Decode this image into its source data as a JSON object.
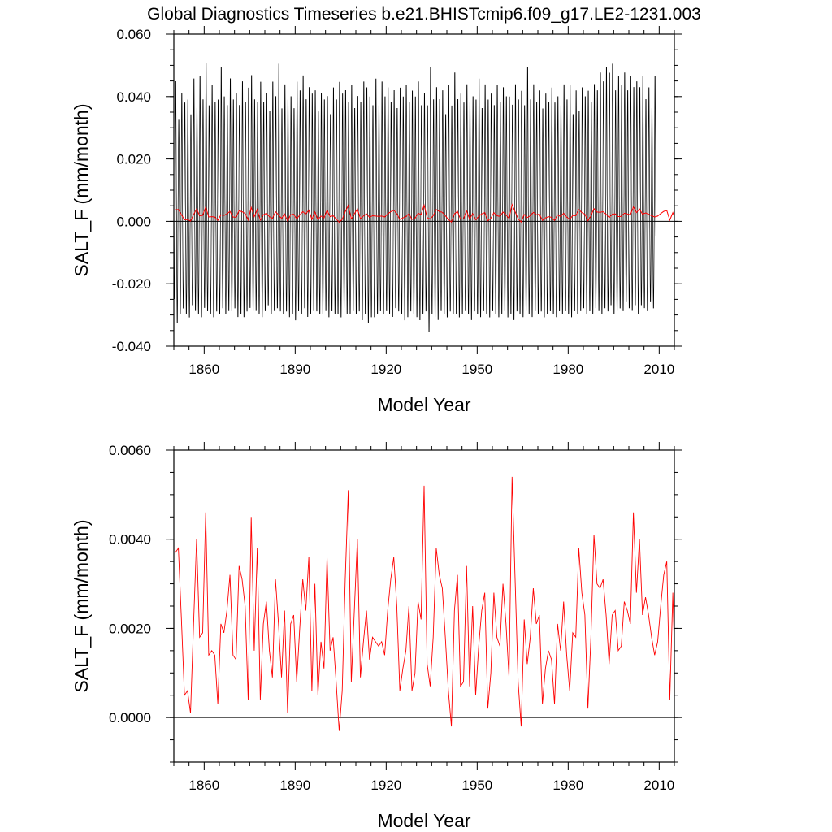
{
  "title": "Global Diagnostics Timeseries b.e21.BHISTcmip6.f09_g17.LE2-1231.003",
  "colors": {
    "monthly": "#000000",
    "annual": "#ff0000",
    "axes": "#000000"
  },
  "chart_data": [
    {
      "type": "line",
      "xlabel": "Model Year",
      "ylabel": "SALT_F (mm/month)",
      "xlim": [
        1850,
        2015
      ],
      "ylim": [
        -0.04,
        0.06
      ],
      "x_ticks": [
        "1860",
        "1890",
        "1920",
        "1950",
        "1980",
        "2010"
      ],
      "y_ticks": [
        "-0.040",
        "-0.020",
        "0.000",
        "0.020",
        "0.040",
        "0.060"
      ],
      "zero_line": true,
      "series": [
        {
          "description": "monthly values, x = 1850.0 + i/12 (i = 0..1979), 1980 points",
          "monthly_peak_max": [
            0.047,
            0.034,
            0.043,
            0.04,
            0.041,
            0.036,
            0.048,
            0.038,
            0.049,
            0.041,
            0.053,
            0.039,
            0.046,
            0.04,
            0.041,
            0.052,
            0.042,
            0.039,
            0.048,
            0.041,
            0.043,
            0.039,
            0.047,
            0.04,
            0.045,
            0.049,
            0.041,
            0.04,
            0.047,
            0.04,
            0.043,
            0.037,
            0.047,
            0.042,
            0.053,
            0.038,
            0.046,
            0.041,
            0.042,
            0.038,
            0.047,
            0.044,
            0.049,
            0.041,
            0.045,
            0.043,
            0.044,
            0.037,
            0.043,
            0.041,
            0.042,
            0.036,
            0.045,
            0.041,
            0.047,
            0.043,
            0.044,
            0.04,
            0.046,
            0.038,
            0.042,
            0.04,
            0.047,
            0.045,
            0.042,
            0.039,
            0.048,
            0.039,
            0.047,
            0.042,
            0.045,
            0.04,
            0.044,
            0.038,
            0.045,
            0.042,
            0.046,
            0.04,
            0.044,
            0.042,
            0.047,
            0.039,
            0.043,
            0.039,
            0.052,
            0.041,
            0.045,
            0.041,
            0.044,
            0.036,
            0.046,
            0.039,
            0.05,
            0.041,
            0.043,
            0.04,
            0.046,
            0.04,
            0.042,
            0.041,
            0.048,
            0.038,
            0.046,
            0.041,
            0.043,
            0.039,
            0.046,
            0.04,
            0.045,
            0.042,
            0.042,
            0.039,
            0.046,
            0.041,
            0.044,
            0.039,
            0.052,
            0.041,
            0.046,
            0.04,
            0.044,
            0.038,
            0.043,
            0.04,
            0.045,
            0.04,
            0.042,
            0.039,
            0.046,
            0.041,
            0.046,
            0.036,
            0.044,
            0.037,
            0.045,
            0.042,
            0.044,
            0.04,
            0.046,
            0.044,
            0.05,
            0.047,
            0.052,
            0.05,
            0.053,
            0.044,
            0.049,
            0.046,
            0.05,
            0.044,
            0.049,
            0.045,
            0.047,
            0.045,
            0.049,
            0.041,
            0.045,
            0.038,
            0.049
          ],
          "monthly_trough_min": [
            -0.026,
            -0.034,
            -0.031,
            -0.029,
            -0.031,
            -0.032,
            -0.028,
            -0.03,
            -0.031,
            -0.032,
            -0.029,
            -0.03,
            -0.031,
            -0.032,
            -0.03,
            -0.031,
            -0.029,
            -0.031,
            -0.03,
            -0.03,
            -0.029,
            -0.032,
            -0.031,
            -0.032,
            -0.03,
            -0.029,
            -0.03,
            -0.03,
            -0.031,
            -0.032,
            -0.03,
            -0.028,
            -0.031,
            -0.03,
            -0.029,
            -0.03,
            -0.031,
            -0.03,
            -0.032,
            -0.031,
            -0.033,
            -0.03,
            -0.031,
            -0.029,
            -0.032,
            -0.031,
            -0.03,
            -0.03,
            -0.031,
            -0.031,
            -0.03,
            -0.032,
            -0.03,
            -0.031,
            -0.031,
            -0.032,
            -0.029,
            -0.031,
            -0.031,
            -0.03,
            -0.031,
            -0.03,
            -0.033,
            -0.031,
            -0.034,
            -0.032,
            -0.032,
            -0.031,
            -0.03,
            -0.031,
            -0.03,
            -0.031,
            -0.032,
            -0.029,
            -0.03,
            -0.031,
            -0.033,
            -0.032,
            -0.03,
            -0.031,
            -0.032,
            -0.033,
            -0.031,
            -0.03,
            -0.037,
            -0.031,
            -0.032,
            -0.033,
            -0.03,
            -0.031,
            -0.032,
            -0.03,
            -0.031,
            -0.031,
            -0.032,
            -0.031,
            -0.03,
            -0.031,
            -0.033,
            -0.03,
            -0.031,
            -0.032,
            -0.03,
            -0.031,
            -0.032,
            -0.03,
            -0.031,
            -0.032,
            -0.031,
            -0.03,
            -0.032,
            -0.031,
            -0.033,
            -0.03,
            -0.031,
            -0.032,
            -0.03,
            -0.031,
            -0.032,
            -0.03,
            -0.031,
            -0.03,
            -0.032,
            -0.031,
            -0.03,
            -0.031,
            -0.032,
            -0.03,
            -0.031,
            -0.03,
            -0.031,
            -0.032,
            -0.03,
            -0.031,
            -0.03,
            -0.029,
            -0.031,
            -0.03,
            -0.031,
            -0.029,
            -0.03,
            -0.031,
            -0.029,
            -0.03,
            -0.028,
            -0.031,
            -0.03,
            -0.029,
            -0.03,
            -0.027,
            -0.029,
            -0.03,
            -0.028,
            -0.031,
            -0.028,
            -0.029,
            -0.03,
            -0.027,
            -0.029,
            -0.026,
            -0.028,
            -0.03,
            -0.027
          ],
          "color": "#000000"
        },
        {
          "description": "annual means (red) — same as lower panel",
          "color": "#ff0000"
        }
      ]
    },
    {
      "type": "line",
      "xlabel": "Model Year",
      "ylabel": "SALT_F (mm/month)",
      "xlim": [
        1850,
        2015
      ],
      "ylim": [
        -0.001,
        0.006
      ],
      "x_ticks": [
        "1860",
        "1890",
        "1920",
        "1950",
        "1980",
        "2010"
      ],
      "y_ticks": [
        "0.0000",
        "0.0020",
        "0.0040",
        "0.0060"
      ],
      "zero_line": true,
      "series": [
        {
          "x_start": 1850,
          "x_step": 1,
          "values": [
            0.0037,
            0.0038,
            0.0022,
            0.0005,
            0.0006,
            0.0001,
            0.0021,
            0.004,
            0.0018,
            0.0019,
            0.0046,
            0.0014,
            0.0015,
            0.0014,
            0.0003,
            0.0021,
            0.0019,
            0.0024,
            0.0032,
            0.0014,
            0.0013,
            0.0034,
            0.0031,
            0.0025,
            0.0004,
            0.0045,
            0.0015,
            0.0038,
            0.0004,
            0.0021,
            0.0026,
            0.0015,
            0.0009,
            0.0031,
            0.0021,
            0.0009,
            0.0024,
            0.0001,
            0.0021,
            0.0023,
            0.0008,
            0.002,
            0.0031,
            0.0024,
            0.0036,
            0.0006,
            0.003,
            0.0005,
            0.0017,
            0.0011,
            0.0036,
            0.0015,
            0.0018,
            0.0008,
            -0.0003,
            0.0006,
            0.0031,
            0.0051,
            0.0008,
            0.0024,
            0.004,
            0.0009,
            0.0017,
            0.0024,
            0.0013,
            0.0018,
            0.0017,
            0.0016,
            0.0017,
            0.0014,
            0.0024,
            0.0031,
            0.0036,
            0.0025,
            0.0006,
            0.0011,
            0.0015,
            0.0025,
            0.0006,
            0.001,
            0.0026,
            0.0022,
            0.0052,
            0.0012,
            0.0007,
            0.0018,
            0.0038,
            0.0032,
            0.0029,
            0.0018,
            0.0006,
            -0.0002,
            0.0024,
            0.0032,
            0.0007,
            0.0008,
            0.0034,
            0.0007,
            0.0025,
            0.0005,
            0.0016,
            0.0024,
            0.0028,
            0.0002,
            0.001,
            0.0028,
            0.0018,
            0.0016,
            0.003,
            0.0021,
            0.0009,
            0.0054,
            0.0031,
            0.0008,
            -0.0002,
            0.0022,
            0.0012,
            0.0018,
            0.0029,
            0.0021,
            0.0023,
            0.0003,
            0.0011,
            0.0015,
            0.0013,
            0.0003,
            0.0021,
            0.0015,
            0.0026,
            0.0014,
            0.0006,
            0.0019,
            0.0018,
            0.0038,
            0.0028,
            0.0023,
            0.0002,
            0.0018,
            0.0041,
            0.003,
            0.0029,
            0.0031,
            0.0023,
            0.0012,
            0.0023,
            0.0024,
            0.0015,
            0.0016,
            0.0026,
            0.0024,
            0.0021,
            0.0046,
            0.0028,
            0.004,
            0.0023,
            0.0027,
            0.0023,
            0.0018,
            0.0014,
            0.0017,
            0.0025,
            0.0032,
            0.0035,
            0.0004,
            0.0028,
            0.0003
          ],
          "color": "#ff0000"
        }
      ]
    }
  ]
}
